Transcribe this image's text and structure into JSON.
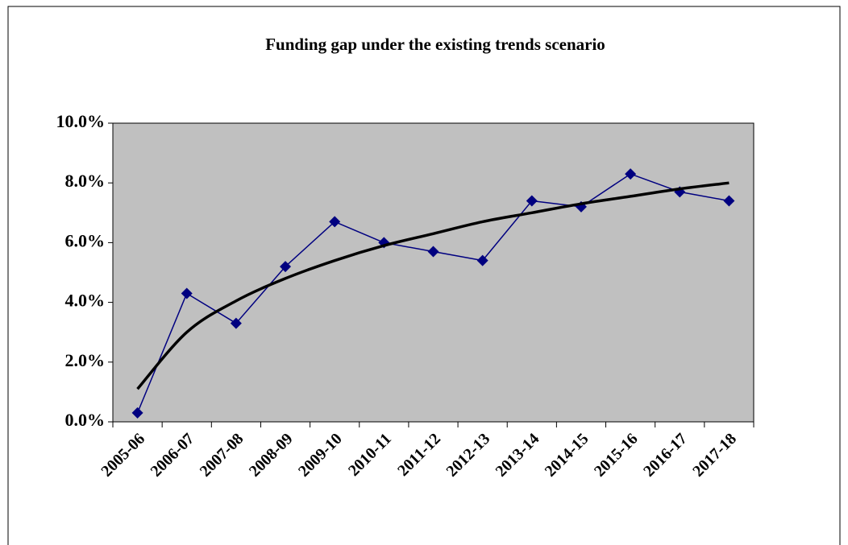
{
  "chart_data": {
    "type": "line",
    "title": "Funding gap under the existing trends scenario",
    "categories": [
      "2005-06",
      "2006-07",
      "2007-08",
      "2008-09",
      "2009-10",
      "2010-11",
      "2011-12",
      "2012-13",
      "2013-14",
      "2014-15",
      "2015-16",
      "2016-17",
      "2017-18"
    ],
    "series": [
      {
        "color": "#000080",
        "marker": "diamond",
        "line_width": 1.5,
        "values": [
          0.3,
          4.3,
          3.3,
          5.2,
          6.7,
          6.0,
          5.7,
          5.4,
          7.4,
          7.2,
          8.3,
          7.7,
          7.4
        ]
      },
      {
        "color": "#000000",
        "marker": "none",
        "line_width": 3.5,
        "values": [
          1.1,
          3.0,
          4.05,
          4.8,
          5.4,
          5.9,
          6.3,
          6.7,
          7.0,
          7.3,
          7.55,
          7.8,
          8.0
        ]
      }
    ],
    "ylim": [
      0,
      10
    ],
    "yticks": [
      {
        "value": 0,
        "label": "0.0%"
      },
      {
        "value": 2,
        "label": "2.0%"
      },
      {
        "value": 4,
        "label": "4.0%"
      },
      {
        "value": 6,
        "label": "6.0%"
      },
      {
        "value": 8,
        "label": "8.0%"
      },
      {
        "value": 10,
        "label": "10.0%"
      }
    ],
    "plot_background": "#c0c0c0",
    "grid": false
  }
}
